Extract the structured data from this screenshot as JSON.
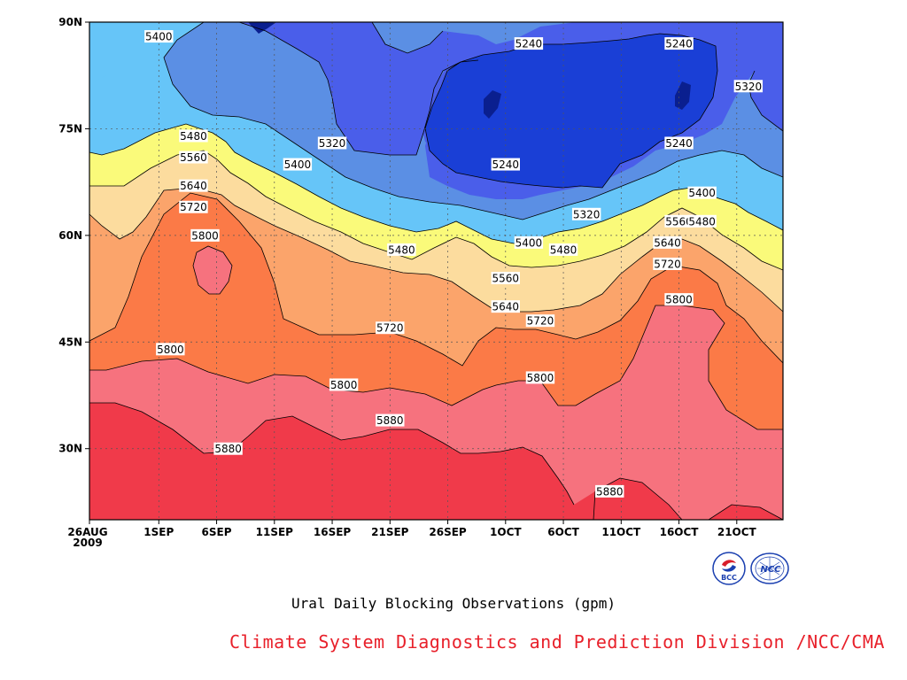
{
  "chart_data": {
    "type": "heatmap",
    "title": "Ural Daily Blocking Observations (gpm)",
    "x_ticks": [
      "26AUG\n2009",
      "1SEP",
      "6SEP",
      "11SEP",
      "16SEP",
      "21SEP",
      "26SEP",
      "1OCT",
      "6OCT",
      "11OCT",
      "16OCT",
      "21OCT"
    ],
    "x_range": [
      "2009-08-26",
      "2009-10-25"
    ],
    "y_ticks": [
      "30N",
      "45N",
      "60N",
      "75N",
      "90N"
    ],
    "y_range": [
      20,
      90
    ],
    "contour_levels": [
      5240,
      5320,
      5400,
      5480,
      5560,
      5640,
      5720,
      5800,
      5880
    ],
    "level_colors": [
      "#0a1f8f",
      "#1a3fd6",
      "#4a5eea",
      "#5b8fe4",
      "#66c5f8",
      "#fafa7a",
      "#fcdc9e",
      "#fba46b",
      "#fb7a47",
      "#f6727e",
      "#f03a4a"
    ],
    "contour_labels": [
      {
        "value": "5400",
        "date": "2009-09-01",
        "lat": 88
      },
      {
        "value": "5240",
        "date": "2009-10-03",
        "lat": 87
      },
      {
        "value": "5240",
        "date": "2009-10-16",
        "lat": 87
      },
      {
        "value": "5320",
        "date": "2009-10-22",
        "lat": 81
      },
      {
        "value": "5480",
        "date": "2009-09-04",
        "lat": 74
      },
      {
        "value": "5320",
        "date": "2009-09-16",
        "lat": 73
      },
      {
        "value": "5240",
        "date": "2009-10-16",
        "lat": 73
      },
      {
        "value": "5560",
        "date": "2009-09-04",
        "lat": 71
      },
      {
        "value": "5400",
        "date": "2009-09-13",
        "lat": 70
      },
      {
        "value": "5240",
        "date": "2009-10-01",
        "lat": 70
      },
      {
        "value": "5640",
        "date": "2009-09-04",
        "lat": 67
      },
      {
        "value": "5400",
        "date": "2009-10-18",
        "lat": 66
      },
      {
        "value": "5720",
        "date": "2009-09-04",
        "lat": 64
      },
      {
        "value": "5320",
        "date": "2009-10-08",
        "lat": 63
      },
      {
        "value": "5560",
        "date": "2009-10-16",
        "lat": 62
      },
      {
        "value": "5480",
        "date": "2009-10-18",
        "lat": 62
      },
      {
        "value": "5800",
        "date": "2009-09-05",
        "lat": 60
      },
      {
        "value": "5400",
        "date": "2009-10-03",
        "lat": 59
      },
      {
        "value": "5480",
        "date": "2009-10-06",
        "lat": 58
      },
      {
        "value": "5640",
        "date": "2009-10-15",
        "lat": 59
      },
      {
        "value": "5480",
        "date": "2009-09-22",
        "lat": 58
      },
      {
        "value": "5720",
        "date": "2009-10-15",
        "lat": 56
      },
      {
        "value": "5560",
        "date": "2009-10-01",
        "lat": 54
      },
      {
        "value": "5800",
        "date": "2009-10-16",
        "lat": 51
      },
      {
        "value": "5640",
        "date": "2009-10-01",
        "lat": 50
      },
      {
        "value": "5720",
        "date": "2009-10-04",
        "lat": 48
      },
      {
        "value": "5720",
        "date": "2009-09-21",
        "lat": 47
      },
      {
        "value": "5800",
        "date": "2009-09-02",
        "lat": 44
      },
      {
        "value": "5800",
        "date": "2009-10-04",
        "lat": 40
      },
      {
        "value": "5800",
        "date": "2009-09-17",
        "lat": 39
      },
      {
        "value": "5880",
        "date": "2009-09-21",
        "lat": 34
      },
      {
        "value": "5880",
        "date": "2009-09-07",
        "lat": 30
      },
      {
        "value": "5880",
        "date": "2009-10-10",
        "lat": 24
      }
    ],
    "grid": true
  },
  "caption": "Ural Daily Blocking Observations (gpm)",
  "credit": "Climate System Diagnostics and Prediction Division /NCC/CMA",
  "logos": {
    "bcc": {
      "text": "BCC",
      "color": "#1a3fb0"
    },
    "ncc": {
      "text": "NCC",
      "color": "#1a3fb0"
    }
  }
}
